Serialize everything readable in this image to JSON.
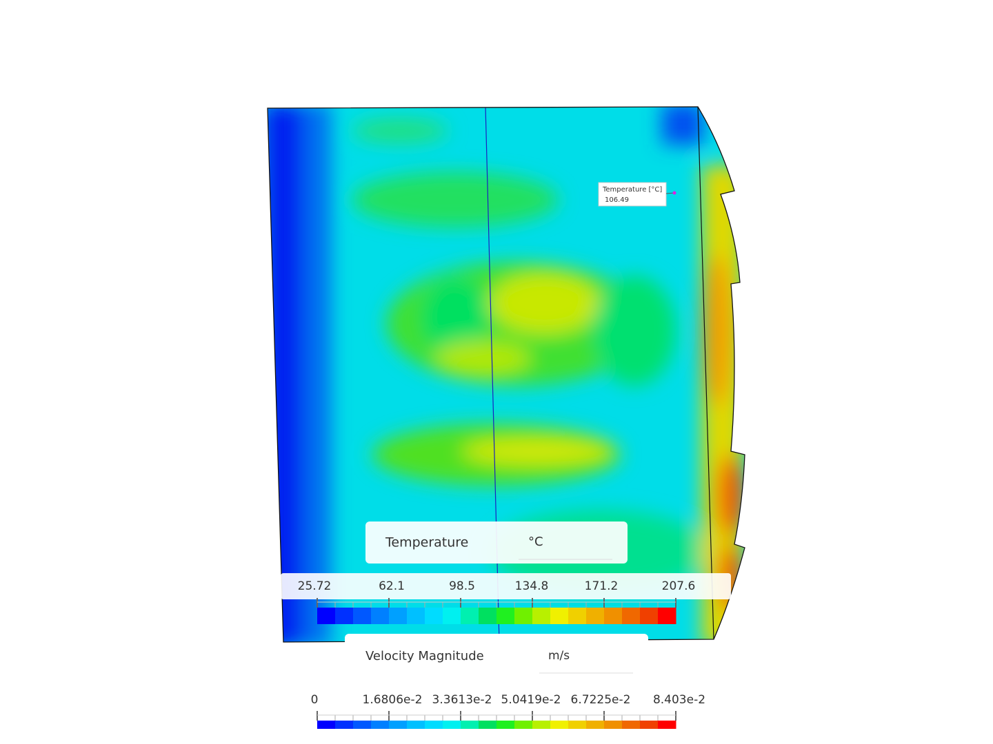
{
  "probe": {
    "label": "Temperature [°C]",
    "value": "106.49"
  },
  "legends": [
    {
      "title": "Temperature",
      "unit": "°C",
      "labels": [
        "25.72",
        "62.1",
        "98.5",
        "134.8",
        "171.2",
        "207.6"
      ]
    },
    {
      "title": "Velocity Magnitude",
      "unit": "m/s",
      "labels": [
        "0",
        "1.6806e-2",
        "3.3613e-2",
        "5.0419e-2",
        "6.7225e-2",
        "8.403e-2"
      ]
    }
  ]
}
